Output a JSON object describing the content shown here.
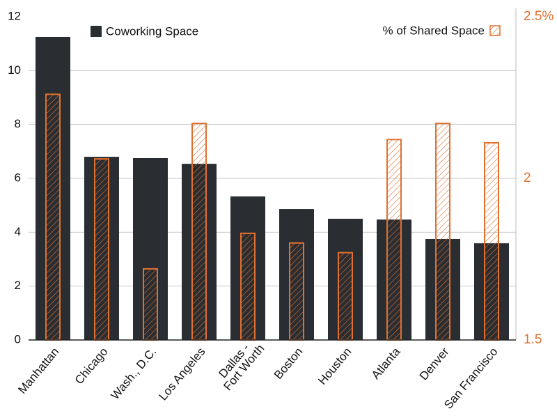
{
  "chart_data": {
    "type": "bar",
    "categories": [
      "Manhattan",
      "Chicago",
      "Wash., D.C.",
      "Los Angeles",
      "Dallas -\nFort Worth",
      "Boston",
      "Houston",
      "Atlanta",
      "Denver",
      "San Francisco"
    ],
    "series": [
      {
        "name": "Coworking Space",
        "color": "#2a2d31",
        "values": [
          11.25,
          6.8,
          6.75,
          6.54,
          5.33,
          4.86,
          4.5,
          4.47,
          3.75,
          3.59
        ]
      },
      {
        "name": "% of Shared Space",
        "color": "#e0702e",
        "axis": "y2",
        "values": [
          2.26,
          2.06,
          1.72,
          2.17,
          1.83,
          1.8,
          1.77,
          2.12,
          2.17,
          2.11
        ]
      }
    ],
    "ylim": [
      0,
      12
    ],
    "yticks": [
      0,
      2,
      4,
      6,
      8,
      10,
      12
    ],
    "y2lim": [
      1.5,
      2.5
    ],
    "y2ticks": [
      1.5,
      2.0,
      {
        "value": 2.5,
        "label": "2.5%"
      }
    ],
    "grid": true
  }
}
